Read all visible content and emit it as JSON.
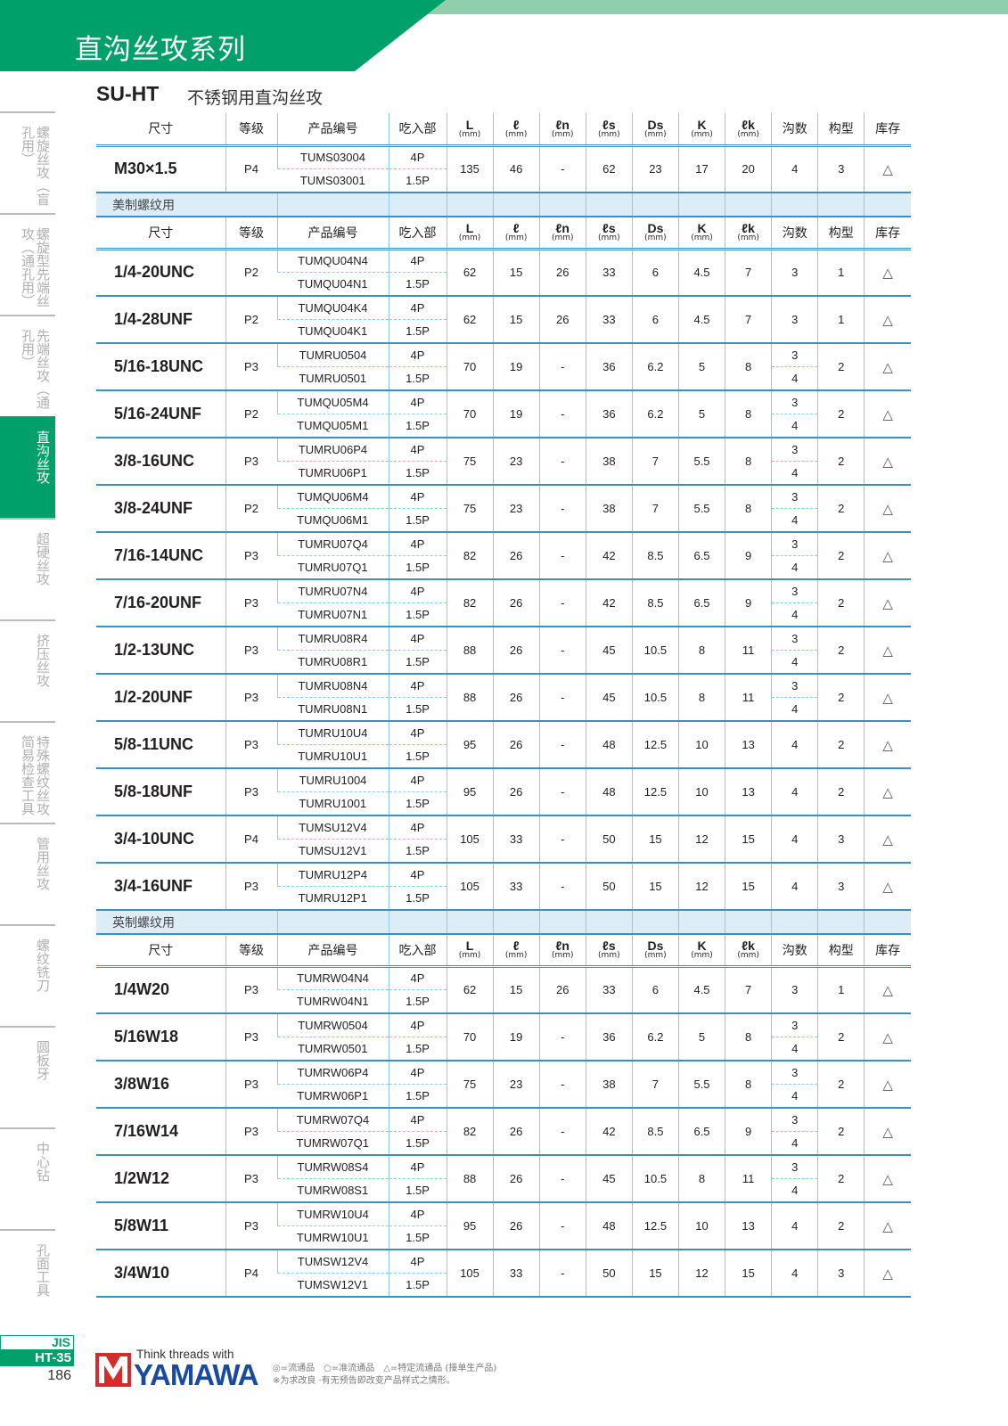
{
  "header": {
    "title": "直沟丝攻系列",
    "series": "SU-HT",
    "series_desc": "不锈钢用直沟丝攻"
  },
  "colors": {
    "brand_green": "#00a06b",
    "light_green": "#8fcfae",
    "rule_blue": "#3b8fc3",
    "section_bg": "#dcedf8"
  },
  "sidebar": {
    "items": [
      {
        "label": "螺旋丝攻（盲孔用）",
        "active": false
      },
      {
        "label": "螺旋型先端丝攻（通孔用）",
        "active": false
      },
      {
        "label": "先端丝攻（通孔用）",
        "active": false
      },
      {
        "label": "直沟丝攻",
        "active": true
      },
      {
        "label": "超硬丝攻",
        "active": false
      },
      {
        "label": "挤压丝攻",
        "active": false
      },
      {
        "label": "特殊螺纹丝攻简易检查工具",
        "active": false
      },
      {
        "label": "管用丝攻",
        "active": false
      },
      {
        "label": "螺纹铣刀",
        "active": false
      },
      {
        "label": "圆板牙",
        "active": false
      },
      {
        "label": "中心钻",
        "active": false
      },
      {
        "label": "孔面工具",
        "active": false
      }
    ]
  },
  "columns": [
    {
      "label": "尺寸"
    },
    {
      "label": "等级"
    },
    {
      "label": "产品编号"
    },
    {
      "label": "吃入部"
    },
    {
      "label": "L",
      "unit": "(mm)"
    },
    {
      "label": "ℓ",
      "unit": "(mm)"
    },
    {
      "label": "ℓn",
      "unit": "(mm)"
    },
    {
      "label": "ℓs",
      "unit": "(mm)"
    },
    {
      "label": "Ds",
      "unit": "(mm)"
    },
    {
      "label": "K",
      "unit": "(mm)"
    },
    {
      "label": "ℓk",
      "unit": "(mm)"
    },
    {
      "label": "沟数"
    },
    {
      "label": "构型"
    },
    {
      "label": "库存"
    }
  ],
  "sections": [
    {
      "label": "",
      "rows": [
        {
          "size": "M30×1.5",
          "grade": "P4",
          "codes": [
            "TUMS03004",
            "TUMS03001"
          ],
          "chamfer": [
            "4P",
            "1.5P"
          ],
          "L": "135",
          "l": "46",
          "ln": "-",
          "ls": "62",
          "Ds": "23",
          "K": "17",
          "lk": "20",
          "flutes": [
            "4"
          ],
          "type": "3",
          "stock": "△"
        }
      ]
    },
    {
      "label": "美制螺纹用",
      "rows": [
        {
          "size": "1/4-20UNC",
          "grade": "P2",
          "codes": [
            "TUMQU04N4",
            "TUMQU04N1"
          ],
          "chamfer": [
            "4P",
            "1.5P"
          ],
          "L": "62",
          "l": "15",
          "ln": "26",
          "ls": "33",
          "Ds": "6",
          "K": "4.5",
          "lk": "7",
          "flutes": [
            "3"
          ],
          "type": "1",
          "stock": "△"
        },
        {
          "size": "1/4-28UNF",
          "grade": "P2",
          "codes": [
            "TUMQU04K4",
            "TUMQU04K1"
          ],
          "chamfer": [
            "4P",
            "1.5P"
          ],
          "L": "62",
          "l": "15",
          "ln": "26",
          "ls": "33",
          "Ds": "6",
          "K": "4.5",
          "lk": "7",
          "flutes": [
            "3"
          ],
          "type": "1",
          "stock": "△"
        },
        {
          "size": "5/16-18UNC",
          "grade": "P3",
          "codes": [
            "TUMRU0504",
            "TUMRU0501"
          ],
          "chamfer": [
            "4P",
            "1.5P"
          ],
          "L": "70",
          "l": "19",
          "ln": "-",
          "ls": "36",
          "Ds": "6.2",
          "K": "5",
          "lk": "8",
          "flutes": [
            "3",
            "4"
          ],
          "type": "2",
          "stock": "△"
        },
        {
          "size": "5/16-24UNF",
          "grade": "P2",
          "codes": [
            "TUMQU05M4",
            "TUMQU05M1"
          ],
          "chamfer": [
            "4P",
            "1.5P"
          ],
          "L": "70",
          "l": "19",
          "ln": "-",
          "ls": "36",
          "Ds": "6.2",
          "K": "5",
          "lk": "8",
          "flutes": [
            "3",
            "4"
          ],
          "type": "2",
          "stock": "△"
        },
        {
          "size": "3/8-16UNC",
          "grade": "P3",
          "codes": [
            "TUMRU06P4",
            "TUMRU06P1"
          ],
          "chamfer": [
            "4P",
            "1.5P"
          ],
          "L": "75",
          "l": "23",
          "ln": "-",
          "ls": "38",
          "Ds": "7",
          "K": "5.5",
          "lk": "8",
          "flutes": [
            "3",
            "4"
          ],
          "type": "2",
          "stock": "△"
        },
        {
          "size": "3/8-24UNF",
          "grade": "P2",
          "codes": [
            "TUMQU06M4",
            "TUMQU06M1"
          ],
          "chamfer": [
            "4P",
            "1.5P"
          ],
          "L": "75",
          "l": "23",
          "ln": "-",
          "ls": "38",
          "Ds": "7",
          "K": "5.5",
          "lk": "8",
          "flutes": [
            "3",
            "4"
          ],
          "type": "2",
          "stock": "△"
        },
        {
          "size": "7/16-14UNC",
          "grade": "P3",
          "codes": [
            "TUMRU07Q4",
            "TUMRU07Q1"
          ],
          "chamfer": [
            "4P",
            "1.5P"
          ],
          "L": "82",
          "l": "26",
          "ln": "-",
          "ls": "42",
          "Ds": "8.5",
          "K": "6.5",
          "lk": "9",
          "flutes": [
            "3",
            "4"
          ],
          "type": "2",
          "stock": "△"
        },
        {
          "size": "7/16-20UNF",
          "grade": "P3",
          "codes": [
            "TUMRU07N4",
            "TUMRU07N1"
          ],
          "chamfer": [
            "4P",
            "1.5P"
          ],
          "L": "82",
          "l": "26",
          "ln": "-",
          "ls": "42",
          "Ds": "8.5",
          "K": "6.5",
          "lk": "9",
          "flutes": [
            "3",
            "4"
          ],
          "type": "2",
          "stock": "△"
        },
        {
          "size": "1/2-13UNC",
          "grade": "P3",
          "codes": [
            "TUMRU08R4",
            "TUMRU08R1"
          ],
          "chamfer": [
            "4P",
            "1.5P"
          ],
          "L": "88",
          "l": "26",
          "ln": "-",
          "ls": "45",
          "Ds": "10.5",
          "K": "8",
          "lk": "11",
          "flutes": [
            "3",
            "4"
          ],
          "type": "2",
          "stock": "△"
        },
        {
          "size": "1/2-20UNF",
          "grade": "P3",
          "codes": [
            "TUMRU08N4",
            "TUMRU08N1"
          ],
          "chamfer": [
            "4P",
            "1.5P"
          ],
          "L": "88",
          "l": "26",
          "ln": "-",
          "ls": "45",
          "Ds": "10.5",
          "K": "8",
          "lk": "11",
          "flutes": [
            "3",
            "4"
          ],
          "type": "2",
          "stock": "△"
        },
        {
          "size": "5/8-11UNC",
          "grade": "P3",
          "codes": [
            "TUMRU10U4",
            "TUMRU10U1"
          ],
          "chamfer": [
            "4P",
            "1.5P"
          ],
          "L": "95",
          "l": "26",
          "ln": "-",
          "ls": "48",
          "Ds": "12.5",
          "K": "10",
          "lk": "13",
          "flutes": [
            "4"
          ],
          "type": "2",
          "stock": "△"
        },
        {
          "size": "5/8-18UNF",
          "grade": "P3",
          "codes": [
            "TUMRU1004",
            "TUMRU1001"
          ],
          "chamfer": [
            "4P",
            "1.5P"
          ],
          "L": "95",
          "l": "26",
          "ln": "-",
          "ls": "48",
          "Ds": "12.5",
          "K": "10",
          "lk": "13",
          "flutes": [
            "4"
          ],
          "type": "2",
          "stock": "△"
        },
        {
          "size": "3/4-10UNC",
          "grade": "P4",
          "codes": [
            "TUMSU12V4",
            "TUMSU12V1"
          ],
          "chamfer": [
            "4P",
            "1.5P"
          ],
          "L": "105",
          "l": "33",
          "ln": "-",
          "ls": "50",
          "Ds": "15",
          "K": "12",
          "lk": "15",
          "flutes": [
            "4"
          ],
          "type": "3",
          "stock": "△"
        },
        {
          "size": "3/4-16UNF",
          "grade": "P3",
          "codes": [
            "TUMRU12P4",
            "TUMRU12P1"
          ],
          "chamfer": [
            "4P",
            "1.5P"
          ],
          "L": "105",
          "l": "33",
          "ln": "-",
          "ls": "50",
          "Ds": "15",
          "K": "12",
          "lk": "15",
          "flutes": [
            "4"
          ],
          "type": "3",
          "stock": "△"
        }
      ]
    },
    {
      "label": "英制螺纹用",
      "rows": [
        {
          "size": "1/4W20",
          "grade": "P3",
          "codes": [
            "TUMRW04N4",
            "TUMRW04N1"
          ],
          "chamfer": [
            "4P",
            "1.5P"
          ],
          "L": "62",
          "l": "15",
          "ln": "26",
          "ls": "33",
          "Ds": "6",
          "K": "4.5",
          "lk": "7",
          "flutes": [
            "3"
          ],
          "type": "1",
          "stock": "△"
        },
        {
          "size": "5/16W18",
          "grade": "P3",
          "codes": [
            "TUMRW0504",
            "TUMRW0501"
          ],
          "chamfer": [
            "4P",
            "1.5P"
          ],
          "L": "70",
          "l": "19",
          "ln": "-",
          "ls": "36",
          "Ds": "6.2",
          "K": "5",
          "lk": "8",
          "flutes": [
            "3",
            "4"
          ],
          "type": "2",
          "stock": "△"
        },
        {
          "size": "3/8W16",
          "grade": "P3",
          "codes": [
            "TUMRW06P4",
            "TUMRW06P1"
          ],
          "chamfer": [
            "4P",
            "1.5P"
          ],
          "L": "75",
          "l": "23",
          "ln": "-",
          "ls": "38",
          "Ds": "7",
          "K": "5.5",
          "lk": "8",
          "flutes": [
            "3",
            "4"
          ],
          "type": "2",
          "stock": "△"
        },
        {
          "size": "7/16W14",
          "grade": "P3",
          "codes": [
            "TUMRW07Q4",
            "TUMRW07Q1"
          ],
          "chamfer": [
            "4P",
            "1.5P"
          ],
          "L": "82",
          "l": "26",
          "ln": "-",
          "ls": "42",
          "Ds": "8.5",
          "K": "6.5",
          "lk": "9",
          "flutes": [
            "3",
            "4"
          ],
          "type": "2",
          "stock": "△"
        },
        {
          "size": "1/2W12",
          "grade": "P3",
          "codes": [
            "TUMRW08S4",
            "TUMRW08S1"
          ],
          "chamfer": [
            "4P",
            "1.5P"
          ],
          "L": "88",
          "l": "26",
          "ln": "-",
          "ls": "45",
          "Ds": "10.5",
          "K": "8",
          "lk": "11",
          "flutes": [
            "3",
            "4"
          ],
          "type": "2",
          "stock": "△"
        },
        {
          "size": "5/8W11",
          "grade": "P3",
          "codes": [
            "TUMRW10U4",
            "TUMRW10U1"
          ],
          "chamfer": [
            "4P",
            "1.5P"
          ],
          "L": "95",
          "l": "26",
          "ln": "-",
          "ls": "48",
          "Ds": "12.5",
          "K": "10",
          "lk": "13",
          "flutes": [
            "4"
          ],
          "type": "2",
          "stock": "△"
        },
        {
          "size": "3/4W10",
          "grade": "P4",
          "codes": [
            "TUMSW12V4",
            "TUMSW12V1"
          ],
          "chamfer": [
            "4P",
            "1.5P"
          ],
          "L": "105",
          "l": "33",
          "ln": "-",
          "ls": "50",
          "Ds": "15",
          "K": "12",
          "lk": "15",
          "flutes": [
            "4"
          ],
          "type": "3",
          "stock": "△"
        }
      ]
    }
  ],
  "footer": {
    "jis": "JIS",
    "code": "HT-35",
    "page": "186",
    "logo_tagline": "Think threads with",
    "logo_name": "YAMAWA",
    "legend": "◎=流通品　○=准流通品　△=特定流通品 (接单生产品)",
    "note": "※为求改良 ·有无预告即改变产品样式之情形。"
  }
}
